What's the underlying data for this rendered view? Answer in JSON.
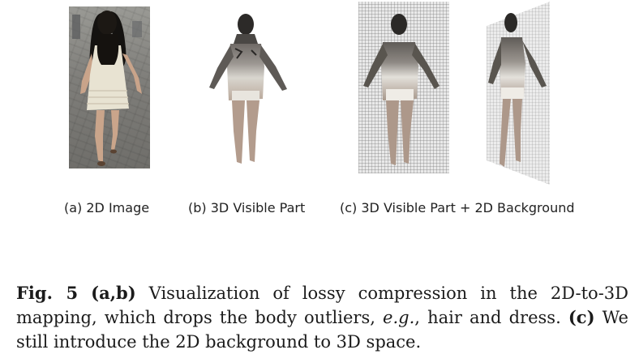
{
  "panels": {
    "a_label": "(a) 2D Image",
    "b_label": "(b) 3D Visible Part",
    "c_label": "(c) 3D Visible Part + 2D Background"
  },
  "caption": {
    "fig_label": "Fig. 5",
    "part_ab": "(a,b)",
    "text1": " Visualization of lossy compression in the 2D-to-3D mapping, which drops the body outliers, ",
    "eg": "e.g.",
    "text2": ", hair and dress. ",
    "part_c": "(c)",
    "text3": " We still introduce the 2D background to 3D space."
  }
}
